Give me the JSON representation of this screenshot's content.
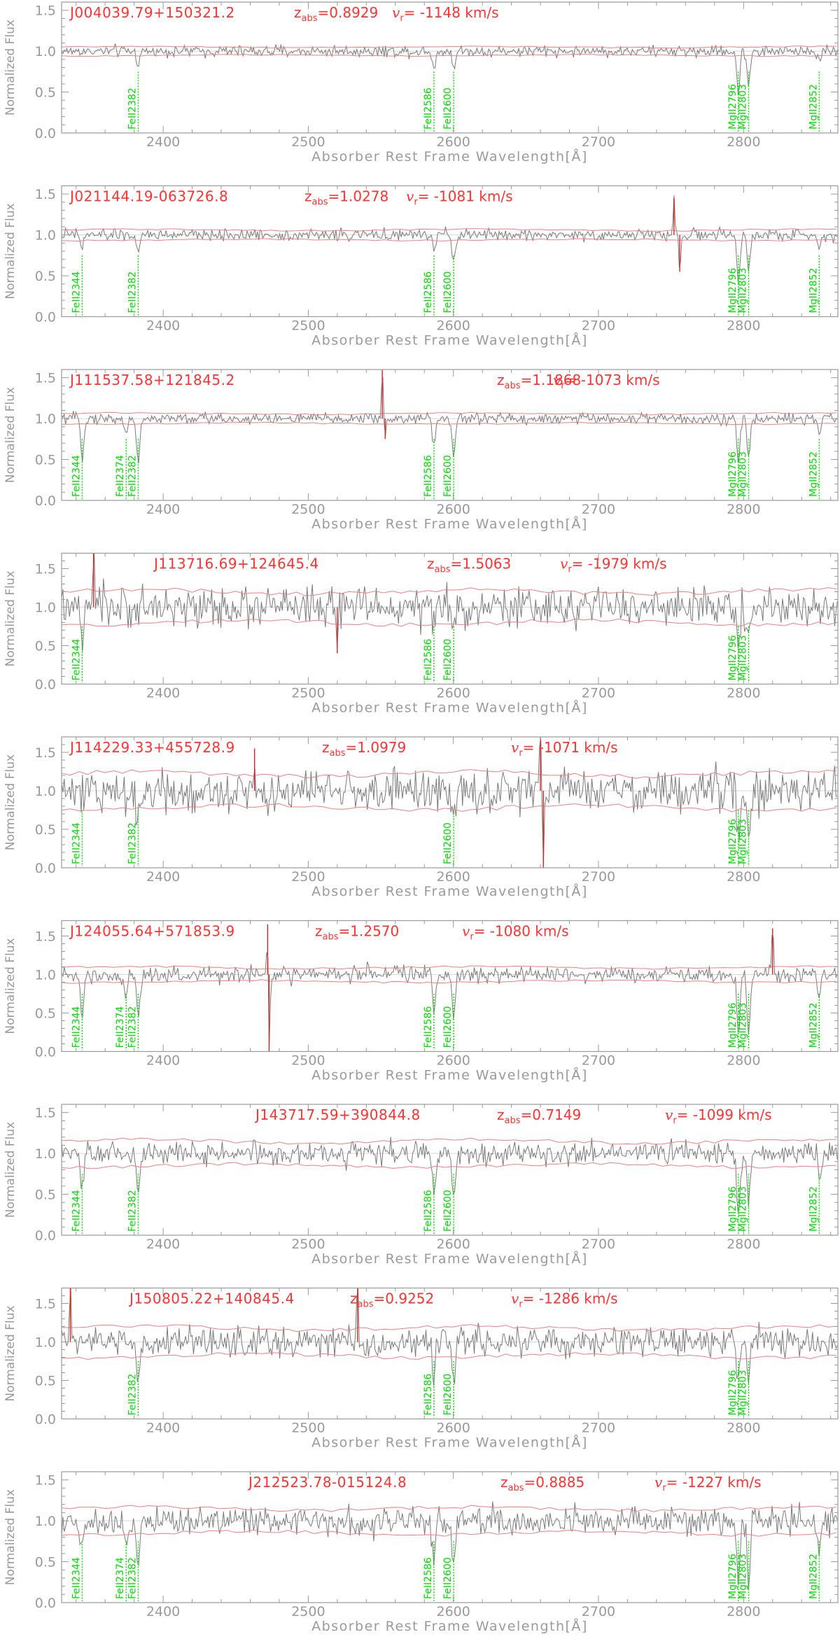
{
  "figure": {
    "ylabel": "Normalized Flux",
    "xlabel": "Absorber Rest Frame Wavelength[Å]"
  },
  "colors": {
    "axes": "#9a9a9a",
    "spectrum": "#7a7a7a",
    "error_envelope": "#f08080",
    "title_text": "#ff3333",
    "line_marker": "#00dd00"
  },
  "chart_data": [
    {
      "type": "line",
      "title": "J004039.79+150321.2",
      "z_abs": "0.8929",
      "v_r": "-1148",
      "xlim": [
        2330,
        2865
      ],
      "ylim": [
        0,
        1.6
      ],
      "yticks": [
        0.0,
        0.5,
        1.0,
        1.5
      ],
      "xticks": [
        2400,
        2500,
        2600,
        2700,
        2800
      ],
      "err": 0.05,
      "noise": 0.05,
      "spikes": [],
      "lines": [
        {
          "label": "FeII2382",
          "x": 2382.8,
          "depth": 0.15
        },
        {
          "label": "FeII2586",
          "x": 2586.6,
          "depth": 0.2
        },
        {
          "label": "FeII2600",
          "x": 2600.2,
          "depth": 0.2
        },
        {
          "label": "MgII2796",
          "x": 2796.4,
          "depth": 0.5
        },
        {
          "label": "MgII2803",
          "x": 2803.5,
          "depth": 0.4
        },
        {
          "label": "MgII2852",
          "x": 2852.1,
          "depth": 0.1
        }
      ]
    },
    {
      "type": "line",
      "title": "J021144.19-063726.8",
      "z_abs": "1.0278",
      "v_r": "-1081",
      "xlim": [
        2330,
        2865
      ],
      "ylim": [
        0,
        1.6
      ],
      "yticks": [
        0.0,
        0.5,
        1.0,
        1.5
      ],
      "xticks": [
        2400,
        2500,
        2600,
        2700,
        2800
      ],
      "err": 0.06,
      "noise": 0.05,
      "spikes": [
        {
          "x": 2752,
          "amp": 0.45
        },
        {
          "x": 2756,
          "amp": -0.45
        }
      ],
      "lines": [
        {
          "label": "FeII2344",
          "x": 2344.2,
          "depth": 0.15
        },
        {
          "label": "FeII2382",
          "x": 2382.8,
          "depth": 0.25
        },
        {
          "label": "FeII2586",
          "x": 2586.6,
          "depth": 0.2
        },
        {
          "label": "FeII2600",
          "x": 2600.2,
          "depth": 0.3
        },
        {
          "label": "MgII2796",
          "x": 2796.4,
          "depth": 0.55
        },
        {
          "label": "MgII2803",
          "x": 2803.5,
          "depth": 0.45
        },
        {
          "label": "MgII2852",
          "x": 2852.1,
          "depth": 0.15
        }
      ]
    },
    {
      "type": "line",
      "title": "J111537.58+121845.2",
      "z_abs": "1.1868",
      "v_r": "-1073",
      "xlim": [
        2330,
        2865
      ],
      "ylim": [
        0,
        1.6
      ],
      "yticks": [
        0.0,
        0.5,
        1.0,
        1.5
      ],
      "xticks": [
        2400,
        2500,
        2600,
        2700,
        2800
      ],
      "err": 0.06,
      "noise": 0.05,
      "spikes": [
        {
          "x": 2551,
          "amp": 0.6
        },
        {
          "x": 2553,
          "amp": -0.25
        }
      ],
      "lines": [
        {
          "label": "FeII2344",
          "x": 2344.2,
          "depth": 0.45
        },
        {
          "label": "FeII2374",
          "x": 2374.5,
          "depth": 0.2
        },
        {
          "label": "FeII2382",
          "x": 2382.8,
          "depth": 0.55
        },
        {
          "label": "FeII2586",
          "x": 2586.6,
          "depth": 0.35
        },
        {
          "label": "FeII2600",
          "x": 2600.2,
          "depth": 0.45
        },
        {
          "label": "MgII2796",
          "x": 2796.4,
          "depth": 0.55
        },
        {
          "label": "MgII2803",
          "x": 2803.5,
          "depth": 0.5
        },
        {
          "label": "MgII2852",
          "x": 2852.1,
          "depth": 0.25
        }
      ]
    },
    {
      "type": "line",
      "title": "J113716.69+124645.4",
      "z_abs": "1.5063",
      "v_r": "-1979",
      "xlim": [
        2330,
        2865
      ],
      "ylim": [
        0,
        1.7
      ],
      "yticks": [
        0.0,
        0.5,
        1.0,
        1.5
      ],
      "xticks": [
        2400,
        2500,
        2600,
        2700,
        2800
      ],
      "err": 0.2,
      "noise": 0.18,
      "spikes": [
        {
          "x": 2352,
          "amp": 0.7
        },
        {
          "x": 2520,
          "amp": -0.6
        }
      ],
      "lines": [
        {
          "label": "FeII2344",
          "x": 2344.2,
          "depth": 0.5
        },
        {
          "label": "FeII2586",
          "x": 2586.6,
          "depth": 0.3
        },
        {
          "label": "FeII2600",
          "x": 2600.2,
          "depth": 0.3
        },
        {
          "label": "MgII2796",
          "x": 2796.4,
          "depth": 0.5
        },
        {
          "label": "MgII2803",
          "x": 2803.5,
          "depth": 0.4
        }
      ]
    },
    {
      "type": "line",
      "title": "J114229.33+455728.9",
      "z_abs": "1.0979",
      "v_r": "-1071",
      "xlim": [
        2330,
        2865
      ],
      "ylim": [
        0,
        1.7
      ],
      "yticks": [
        0.0,
        0.5,
        1.0,
        1.5
      ],
      "xticks": [
        2400,
        2500,
        2600,
        2700,
        2800
      ],
      "err": 0.22,
      "noise": 0.2,
      "spikes": [
        {
          "x": 2463,
          "amp": 0.55
        },
        {
          "x": 2660,
          "amp": 0.8
        },
        {
          "x": 2662,
          "amp": -1.0
        }
      ],
      "lines": [
        {
          "label": "FeII2344",
          "x": 2344.2,
          "depth": 0.2
        },
        {
          "label": "FeII2382",
          "x": 2382.8,
          "depth": 0.45
        },
        {
          "label": "FeII2600",
          "x": 2600.2,
          "depth": 0.3
        },
        {
          "label": "MgII2796",
          "x": 2796.4,
          "depth": 0.6
        },
        {
          "label": "MgII2803",
          "x": 2803.5,
          "depth": 0.6
        }
      ]
    },
    {
      "type": "line",
      "title": "J124055.64+571853.9",
      "z_abs": "1.2570",
      "v_r": "-1080",
      "xlim": [
        2330,
        2865
      ],
      "ylim": [
        0,
        1.7
      ],
      "yticks": [
        0.0,
        0.5,
        1.0,
        1.5
      ],
      "xticks": [
        2400,
        2500,
        2600,
        2700,
        2800
      ],
      "err": 0.09,
      "noise": 0.08,
      "spikes": [
        {
          "x": 2472,
          "amp": 0.65
        },
        {
          "x": 2473,
          "amp": -1.0
        },
        {
          "x": 2820,
          "amp": 0.6
        }
      ],
      "lines": [
        {
          "label": "FeII2344",
          "x": 2344.2,
          "depth": 0.55
        },
        {
          "label": "FeII2374",
          "x": 2374.5,
          "depth": 0.3
        },
        {
          "label": "FeII2382",
          "x": 2382.8,
          "depth": 0.6
        },
        {
          "label": "FeII2586",
          "x": 2586.6,
          "depth": 0.45
        },
        {
          "label": "FeII2600",
          "x": 2600.2,
          "depth": 0.55
        },
        {
          "label": "MgII2796",
          "x": 2796.4,
          "depth": 0.8
        },
        {
          "label": "MgII2803",
          "x": 2803.5,
          "depth": 0.75
        },
        {
          "label": "MgII2852",
          "x": 2852.1,
          "depth": 0.3
        }
      ]
    },
    {
      "type": "line",
      "title": "J143717.59+390844.8",
      "z_abs": "0.7149",
      "v_r": "-1099",
      "xlim": [
        2330,
        2865
      ],
      "ylim": [
        0,
        1.6
      ],
      "yticks": [
        0.0,
        0.5,
        1.0,
        1.5
      ],
      "xticks": [
        2400,
        2500,
        2600,
        2700,
        2800
      ],
      "err": 0.15,
      "noise": 0.1,
      "spikes": [],
      "lines": [
        {
          "label": "FeII2344",
          "x": 2344.2,
          "depth": 0.45
        },
        {
          "label": "FeII2382",
          "x": 2382.8,
          "depth": 0.55
        },
        {
          "label": "FeII2586",
          "x": 2586.6,
          "depth": 0.45
        },
        {
          "label": "FeII2600",
          "x": 2600.2,
          "depth": 0.55
        },
        {
          "label": "MgII2796",
          "x": 2796.4,
          "depth": 0.75
        },
        {
          "label": "MgII2803",
          "x": 2803.5,
          "depth": 0.7
        },
        {
          "label": "MgII2852",
          "x": 2852.1,
          "depth": 0.35
        }
      ]
    },
    {
      "type": "line",
      "title": "J150805.22+140845.4",
      "z_abs": "0.9252",
      "v_r": "-1286",
      "xlim": [
        2330,
        2865
      ],
      "ylim": [
        0,
        1.7
      ],
      "yticks": [
        0.0,
        0.5,
        1.0,
        1.5
      ],
      "xticks": [
        2400,
        2500,
        2600,
        2700,
        2800
      ],
      "err": 0.18,
      "noise": 0.14,
      "spikes": [
        {
          "x": 2336,
          "amp": 0.8
        },
        {
          "x": 2534,
          "amp": 0.75
        }
      ],
      "lines": [
        {
          "label": "FeII2382",
          "x": 2382.8,
          "depth": 0.6
        },
        {
          "label": "FeII2586",
          "x": 2586.6,
          "depth": 0.5
        },
        {
          "label": "FeII2600",
          "x": 2600.2,
          "depth": 0.6
        },
        {
          "label": "MgII2796",
          "x": 2796.4,
          "depth": 0.6
        },
        {
          "label": "MgII2803",
          "x": 2803.5,
          "depth": 0.55
        }
      ]
    },
    {
      "type": "line",
      "title": "J212523.78-015124.8",
      "z_abs": "0.8885",
      "v_r": "-1227",
      "xlim": [
        2330,
        2865
      ],
      "ylim": [
        0,
        1.6
      ],
      "yticks": [
        0.0,
        0.5,
        1.0,
        1.5
      ],
      "xticks": [
        2400,
        2500,
        2600,
        2700,
        2800
      ],
      "err": 0.15,
      "noise": 0.12,
      "spikes": [],
      "lines": [
        {
          "label": "FeII2344",
          "x": 2344.2,
          "depth": 0.4
        },
        {
          "label": "FeII2374",
          "x": 2374.5,
          "depth": 0.25
        },
        {
          "label": "FeII2382",
          "x": 2382.8,
          "depth": 0.55
        },
        {
          "label": "FeII2586",
          "x": 2586.6,
          "depth": 0.5
        },
        {
          "label": "FeII2600",
          "x": 2600.2,
          "depth": 0.6
        },
        {
          "label": "MgII2796",
          "x": 2796.4,
          "depth": 0.75
        },
        {
          "label": "MgII2803",
          "x": 2803.5,
          "depth": 0.8
        },
        {
          "label": "MgII2852",
          "x": 2852.1,
          "depth": 0.3
        }
      ]
    }
  ]
}
